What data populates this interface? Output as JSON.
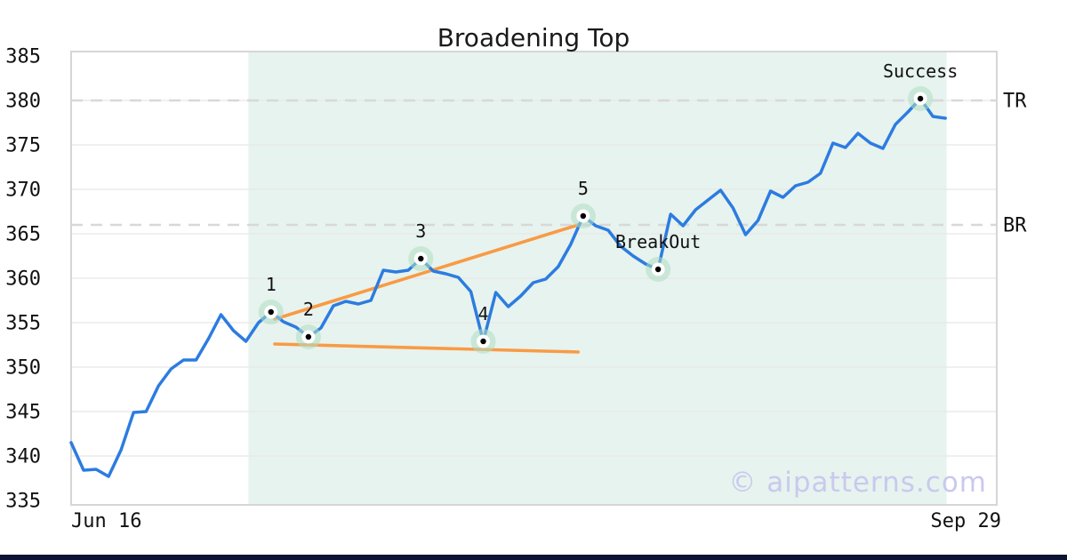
{
  "title": "Broadening Top",
  "watermark": "© aipatterns.com",
  "bottom_bar_color": "#0d1333",
  "chart_data": {
    "type": "line",
    "title": "Broadening Top",
    "x_axis": {
      "start_label": "Jun 16",
      "end_label": "Sep 29"
    },
    "y_axis": {
      "min": 335,
      "max": 385,
      "tick_step": 5,
      "ticks": [
        335,
        340,
        345,
        350,
        355,
        360,
        365,
        370,
        375,
        380,
        385
      ]
    },
    "grid": true,
    "legend": false,
    "series": [
      {
        "name": "price",
        "color": "#2c7ce0",
        "values": [
          341.5,
          338.4,
          338.5,
          337.7,
          340.7,
          344.9,
          345.0,
          347.9,
          349.8,
          350.8,
          350.8,
          353.2,
          355.9,
          354.1,
          352.9,
          355.0,
          356.2,
          355.1,
          354.5,
          353.4,
          354.4,
          356.9,
          357.4,
          357.1,
          357.5,
          360.9,
          360.7,
          360.9,
          362.2,
          360.8,
          360.5,
          360.1,
          358.5,
          352.9,
          358.4,
          356.8,
          358.0,
          359.5,
          359.9,
          361.3,
          363.8,
          367.0,
          365.9,
          365.4,
          363.6,
          362.5,
          361.6,
          361.0,
          367.2,
          365.9,
          367.7,
          368.8,
          369.9,
          367.9,
          364.9,
          366.5,
          369.8,
          369.1,
          370.4,
          370.8,
          371.8,
          375.2,
          374.7,
          376.3,
          375.2,
          374.6,
          377.3,
          378.7,
          380.2,
          378.2,
          378.0
        ]
      }
    ],
    "pattern_points": [
      {
        "label": "1",
        "index": 16,
        "value": 356.2
      },
      {
        "label": "2",
        "index": 19,
        "value": 353.4
      },
      {
        "label": "3",
        "index": 28,
        "value": 362.2
      },
      {
        "label": "4",
        "index": 33,
        "value": 352.9
      },
      {
        "label": "5",
        "index": 41,
        "value": 367.0
      },
      {
        "label": "BreakOut",
        "index": 47,
        "value": 361.0
      },
      {
        "label": "Success",
        "index": 68,
        "value": 380.2
      }
    ],
    "trendlines": [
      {
        "name": "upper-broadening-line",
        "color": "#f89b45",
        "from": {
          "index": 16.3,
          "value": 355.4
        },
        "to": {
          "index": 40.6,
          "value": 366.0
        }
      },
      {
        "name": "lower-broadening-line",
        "color": "#f89b45",
        "from": {
          "index": 16.3,
          "value": 352.6
        },
        "to": {
          "index": 40.6,
          "value": 351.7
        }
      }
    ],
    "hlines": [
      {
        "label": "TR",
        "value": 380
      },
      {
        "label": "BR",
        "value": 366
      }
    ],
    "shaded_region": {
      "start_index": 14.2,
      "end_index": 70.1,
      "color": "#e7f3ee"
    },
    "marker_style": {
      "halo_color": "#aedcc4",
      "inner_color": "#ffffff",
      "dot_color": "#000000"
    }
  }
}
